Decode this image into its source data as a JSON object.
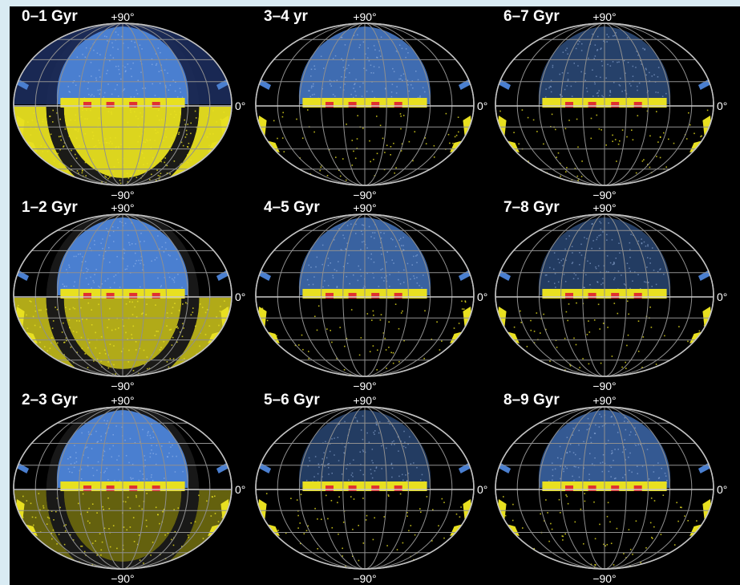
{
  "colors": {
    "background": "#d9ebf3",
    "sky": "#000000",
    "grid": "#8f8f8f",
    "north_region": "#4a7fd0",
    "south_region": "#e8e020",
    "equator_marks": "#e03030"
  },
  "labels": {
    "north_pole": "+90°",
    "south_pole": "−90°",
    "equator": "0°"
  },
  "panels": [
    {
      "title": "0–1 Gyr",
      "blue_density": 1.0,
      "yellow_level": "full"
    },
    {
      "title": "3–4 yr",
      "blue_density": 0.8,
      "yellow_level": "low"
    },
    {
      "title": "6–7 Gyr",
      "blue_density": 0.35,
      "yellow_level": "low"
    },
    {
      "title": "1–2 Gyr",
      "blue_density": 1.0,
      "yellow_level": "high"
    },
    {
      "title": "4–5 Gyr",
      "blue_density": 0.7,
      "yellow_level": "low"
    },
    {
      "title": "7–8 Gyr",
      "blue_density": 0.3,
      "yellow_level": "low"
    },
    {
      "title": "2–3 Gyr",
      "blue_density": 1.0,
      "yellow_level": "medium"
    },
    {
      "title": "5–6 Gyr",
      "blue_density": 0.3,
      "yellow_level": "low"
    },
    {
      "title": "8–9 Gyr",
      "blue_density": 0.6,
      "yellow_level": "low"
    }
  ]
}
